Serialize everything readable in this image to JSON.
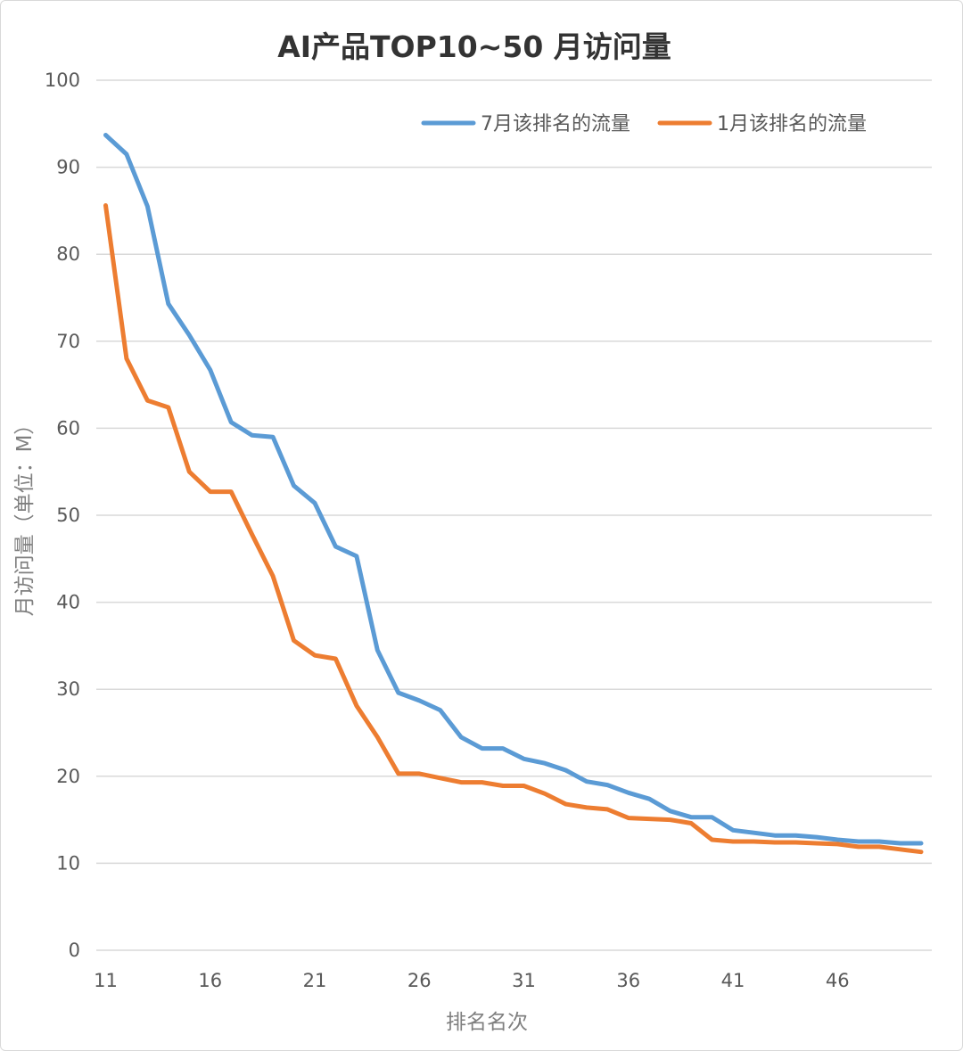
{
  "chart_data": {
    "type": "line",
    "title": "AI产品TOP10~50 月访问量",
    "xlabel": "排名名次",
    "ylabel": "月访问量（单位：M）",
    "ylim": [
      0,
      100
    ],
    "y_ticks": [
      0,
      10,
      20,
      30,
      40,
      50,
      60,
      70,
      80,
      90,
      100
    ],
    "x_ticks": [
      11,
      16,
      21,
      26,
      31,
      36,
      41,
      46
    ],
    "grid": true,
    "legend_position": "top-right",
    "x": [
      11,
      12,
      13,
      14,
      15,
      16,
      17,
      18,
      19,
      20,
      21,
      22,
      23,
      24,
      25,
      26,
      27,
      28,
      29,
      30,
      31,
      32,
      33,
      34,
      35,
      36,
      37,
      38,
      39,
      40,
      41,
      42,
      43,
      44,
      45,
      46,
      47,
      48,
      49,
      50
    ],
    "series": [
      {
        "name": "7月该排名的流量",
        "color": "#5b9bd5",
        "values": [
          93.7,
          91.5,
          85.5,
          74.3,
          70.7,
          66.7,
          60.7,
          59.2,
          59.0,
          53.4,
          51.4,
          46.4,
          45.3,
          34.5,
          29.6,
          28.7,
          27.6,
          24.5,
          23.2,
          23.2,
          22.0,
          21.5,
          20.7,
          19.4,
          19.0,
          18.1,
          17.4,
          16.0,
          15.3,
          15.3,
          13.8,
          13.5,
          13.2,
          13.2,
          13.0,
          12.7,
          12.5,
          12.5,
          12.3,
          12.3
        ]
      },
      {
        "name": "1月该排名的流量",
        "color": "#ed7d31",
        "values": [
          85.6,
          68.0,
          63.2,
          62.4,
          55.0,
          52.7,
          52.7,
          47.8,
          43.0,
          35.6,
          33.9,
          33.5,
          28.1,
          24.5,
          20.3,
          20.3,
          19.8,
          19.3,
          19.3,
          18.9,
          18.9,
          18.0,
          16.8,
          16.4,
          16.2,
          15.2,
          15.1,
          15.0,
          14.6,
          12.7,
          12.5,
          12.5,
          12.4,
          12.4,
          12.3,
          12.2,
          11.9,
          11.9,
          11.6,
          11.3
        ]
      }
    ]
  }
}
